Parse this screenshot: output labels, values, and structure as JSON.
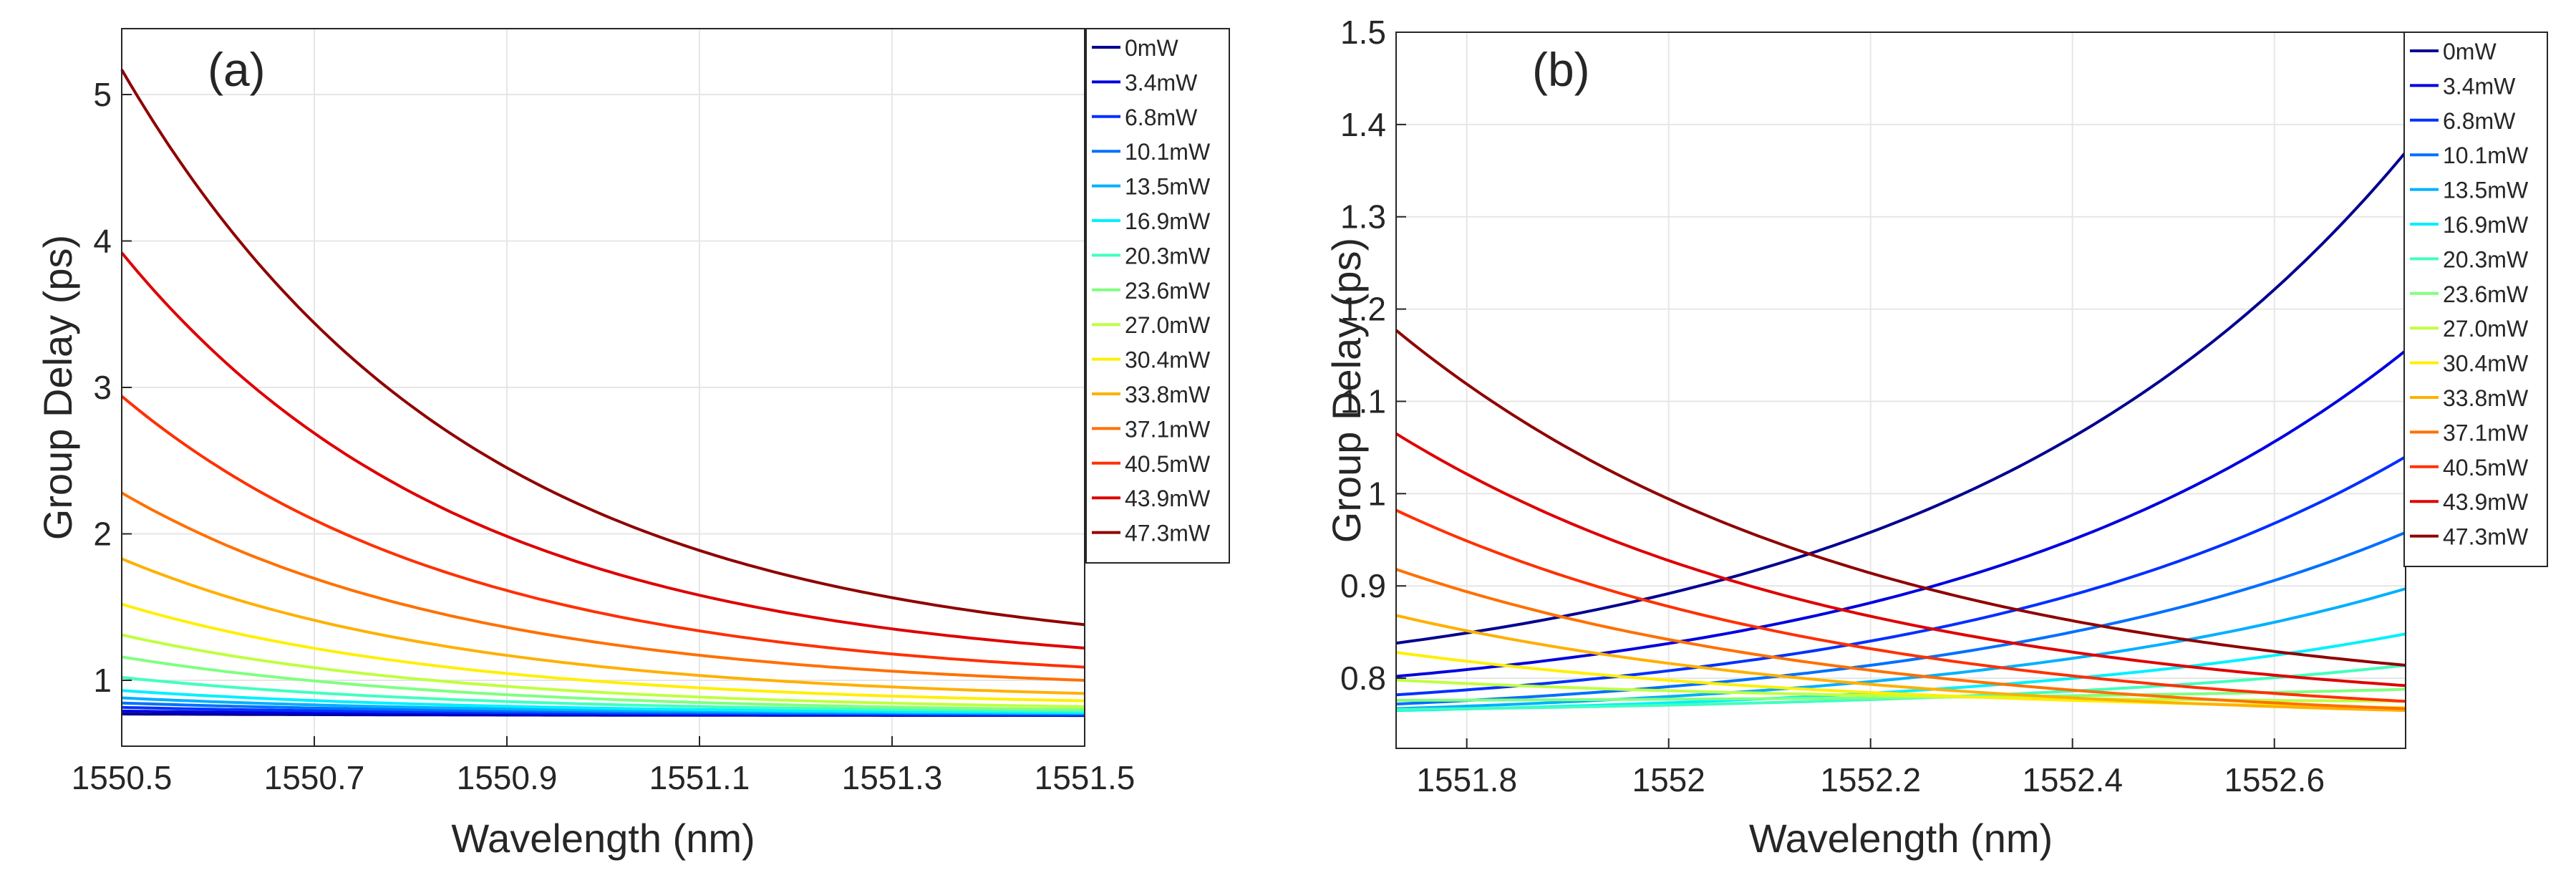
{
  "chart_data": [
    {
      "type": "line",
      "panel_label": "(a)",
      "xlabel": "Wavelength (nm)",
      "ylabel": "Group Delay (ps)",
      "xlim": [
        1550.5,
        1551.5
      ],
      "ylim": [
        0.55,
        5.45
      ],
      "xticks": [
        1550.5,
        1550.7,
        1550.9,
        1551.1,
        1551.3,
        1551.5
      ],
      "xtick_labels": [
        "1550.5",
        "1550.7",
        "1550.9",
        "1551.1",
        "1551.3",
        "1551.5"
      ],
      "yticks": [
        1,
        2,
        3,
        4,
        5
      ],
      "ytick_labels": [
        "1",
        "2",
        "3",
        "4",
        "5"
      ],
      "grid": true,
      "legend_position": "top-right",
      "series": [
        {
          "name": "0mW",
          "color": "#00008f",
          "x": [
            1550.5,
            1551.5
          ],
          "start": 0.77,
          "end": 0.76,
          "shape": "exp"
        },
        {
          "name": "3.4mW",
          "color": "#0000df",
          "x": [
            1550.5,
            1551.5
          ],
          "start": 0.79,
          "end": 0.762,
          "shape": "exp"
        },
        {
          "name": "6.8mW",
          "color": "#0030ff",
          "x": [
            1550.5,
            1551.5
          ],
          "start": 0.815,
          "end": 0.765,
          "shape": "exp"
        },
        {
          "name": "10.1mW",
          "color": "#0070ff",
          "x": [
            1550.5,
            1551.5
          ],
          "start": 0.845,
          "end": 0.77,
          "shape": "exp"
        },
        {
          "name": "13.5mW",
          "color": "#00b0ff",
          "x": [
            1550.5,
            1551.5
          ],
          "start": 0.88,
          "end": 0.775,
          "shape": "exp"
        },
        {
          "name": "16.9mW",
          "color": "#00f0ff",
          "x": [
            1550.5,
            1551.5
          ],
          "start": 0.93,
          "end": 0.78,
          "shape": "exp"
        },
        {
          "name": "20.3mW",
          "color": "#40ffbf",
          "x": [
            1550.5,
            1551.5
          ],
          "start": 1.02,
          "end": 0.79,
          "shape": "exp"
        },
        {
          "name": "23.6mW",
          "color": "#80ff80",
          "x": [
            1550.5,
            1551.5
          ],
          "start": 1.16,
          "end": 0.8,
          "shape": "exp"
        },
        {
          "name": "27.0mW",
          "color": "#bfff40",
          "x": [
            1550.5,
            1551.5
          ],
          "start": 1.31,
          "end": 0.82,
          "shape": "exp"
        },
        {
          "name": "30.4mW",
          "color": "#ffef00",
          "x": [
            1550.5,
            1551.5
          ],
          "start": 1.52,
          "end": 0.86,
          "shape": "exp"
        },
        {
          "name": "33.8mW",
          "color": "#ffb000",
          "x": [
            1550.5,
            1551.5
          ],
          "start": 1.83,
          "end": 0.91,
          "shape": "exp"
        },
        {
          "name": "37.1mW",
          "color": "#ff7000",
          "x": [
            1550.5,
            1551.5
          ],
          "start": 2.28,
          "end": 1.0,
          "shape": "exp"
        },
        {
          "name": "40.5mW",
          "color": "#ff3000",
          "x": [
            1550.5,
            1551.5
          ],
          "start": 2.94,
          "end": 1.09,
          "shape": "exp"
        },
        {
          "name": "43.9mW",
          "color": "#df0000",
          "x": [
            1550.5,
            1551.5
          ],
          "start": 3.92,
          "end": 1.22,
          "shape": "exp"
        },
        {
          "name": "47.3mW",
          "color": "#8f0000",
          "x": [
            1550.5,
            1551.5
          ],
          "start": 5.17,
          "end": 1.38,
          "shape": "exp"
        }
      ]
    },
    {
      "type": "line",
      "panel_label": "(b)",
      "xlabel": "Wavelength (nm)",
      "ylabel": "Group Delay (ps)",
      "xlim": [
        1551.73,
        1552.73
      ],
      "ylim": [
        0.724,
        1.5
      ],
      "xticks": [
        1551.8,
        1552.0,
        1552.2,
        1552.4,
        1552.6
      ],
      "xtick_labels": [
        "1551.8",
        "1552",
        "1552.2",
        "1552.4",
        "1552.6"
      ],
      "yticks": [
        0.8,
        0.9,
        1.0,
        1.1,
        1.2,
        1.3,
        1.4,
        1.5
      ],
      "ytick_labels": [
        "0.8",
        "0.9",
        "1",
        "1.1",
        "1.2",
        "1.3",
        "1.4",
        "1.5"
      ],
      "grid": true,
      "legend_position": "top-right",
      "series": [
        {
          "name": "0mW",
          "color": "#00008f",
          "x": [
            1551.73,
            1552.73
          ],
          "start": 0.838,
          "end": 1.37,
          "shape": "convex"
        },
        {
          "name": "3.4mW",
          "color": "#0000df",
          "x": [
            1551.73,
            1552.73
          ],
          "start": 0.802,
          "end": 1.155,
          "shape": "convex"
        },
        {
          "name": "6.8mW",
          "color": "#0030ff",
          "x": [
            1551.73,
            1552.73
          ],
          "start": 0.782,
          "end": 1.04,
          "shape": "convex"
        },
        {
          "name": "10.1mW",
          "color": "#0070ff",
          "x": [
            1551.73,
            1552.73
          ],
          "start": 0.772,
          "end": 0.958,
          "shape": "convex"
        },
        {
          "name": "13.5mW",
          "color": "#00b0ff",
          "x": [
            1551.73,
            1552.73
          ],
          "start": 0.767,
          "end": 0.897,
          "shape": "convex"
        },
        {
          "name": "16.9mW",
          "color": "#00f0ff",
          "x": [
            1551.73,
            1552.73
          ],
          "start": 0.765,
          "end": 0.848,
          "shape": "convex"
        },
        {
          "name": "20.3mW",
          "color": "#40ffbf",
          "x": [
            1551.73,
            1552.73
          ],
          "start": 0.766,
          "end": 0.814,
          "shape": "convex"
        },
        {
          "name": "23.6mW",
          "color": "#80ff80",
          "x": [
            1551.73,
            1552.73
          ],
          "start": 0.776,
          "end": 0.788,
          "shape": "convex"
        },
        {
          "name": "27.0mW",
          "color": "#bfff40",
          "x": [
            1551.73,
            1552.73
          ],
          "start": 0.798,
          "end": 0.775,
          "shape": "decay"
        },
        {
          "name": "30.4mW",
          "color": "#ffef00",
          "x": [
            1551.73,
            1552.73
          ],
          "start": 0.828,
          "end": 0.768,
          "shape": "decay"
        },
        {
          "name": "33.8mW",
          "color": "#ffb000",
          "x": [
            1551.73,
            1552.73
          ],
          "start": 0.868,
          "end": 0.765,
          "shape": "decay"
        },
        {
          "name": "37.1mW",
          "color": "#ff7000",
          "x": [
            1551.73,
            1552.73
          ],
          "start": 0.918,
          "end": 0.767,
          "shape": "decay"
        },
        {
          "name": "40.5mW",
          "color": "#ff3000",
          "x": [
            1551.73,
            1552.73
          ],
          "start": 0.982,
          "end": 0.775,
          "shape": "decay"
        },
        {
          "name": "43.9mW",
          "color": "#df0000",
          "x": [
            1551.73,
            1552.73
          ],
          "start": 1.065,
          "end": 0.792,
          "shape": "decay"
        },
        {
          "name": "47.3mW",
          "color": "#8f0000",
          "x": [
            1551.73,
            1552.73
          ],
          "start": 1.177,
          "end": 0.814,
          "shape": "decay"
        }
      ]
    }
  ]
}
